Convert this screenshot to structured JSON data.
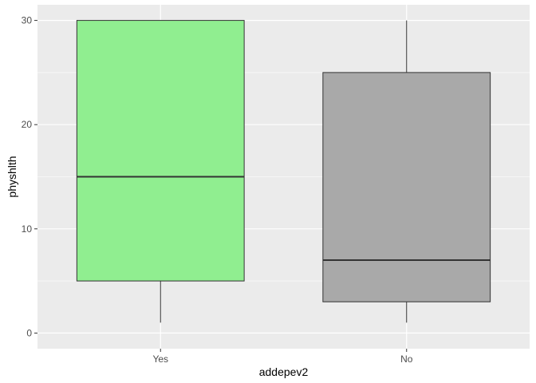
{
  "chart_data": {
    "type": "boxplot",
    "xlabel": "addepev2",
    "ylabel": "physhlth",
    "ylim": [
      -1.5,
      31.5
    ],
    "yticks": [
      0,
      10,
      20,
      30
    ],
    "ytick_labels": [
      "0",
      "10",
      "20",
      "30"
    ],
    "grid": true,
    "categories": [
      "Yes",
      "No"
    ],
    "boxes": [
      {
        "category": "Yes",
        "min": 1,
        "q1": 5,
        "median": 15,
        "q3": 30,
        "max": 30,
        "color": "#90EE90"
      },
      {
        "category": "No",
        "min": 1,
        "q1": 3,
        "median": 7,
        "q3": 25,
        "max": 30,
        "color": "#A9A9A9"
      }
    ],
    "panel_background": "#EBEBEB",
    "grid_color": "#FFFFFF"
  }
}
